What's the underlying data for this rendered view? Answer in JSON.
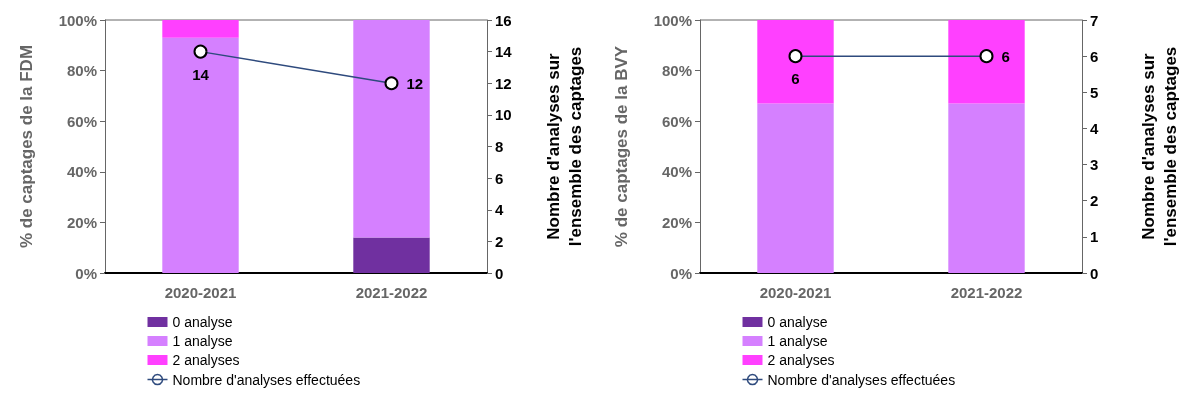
{
  "chart_data": [
    {
      "type": "bar",
      "stacked": true,
      "categories": [
        "2020-2021",
        "2021-2022"
      ],
      "ylabel": "% de captages de la FDM",
      "y2label": "Nombre d'analyses sur l'ensemble des captages",
      "ylim": [
        0,
        100
      ],
      "yticks": [
        {
          "value": 0,
          "label": "0%"
        },
        {
          "value": 20,
          "label": "20%"
        },
        {
          "value": 40,
          "label": "40%"
        },
        {
          "value": 60,
          "label": "60%"
        },
        {
          "value": 80,
          "label": "80%"
        },
        {
          "value": 100,
          "label": "100%"
        }
      ],
      "y2lim": [
        0,
        16
      ],
      "y2ticks": [
        0,
        2,
        4,
        6,
        8,
        10,
        12,
        14,
        16
      ],
      "grid": false,
      "legend": "bottom left",
      "series": [
        {
          "name": "0 analyse",
          "color": "#7030a0",
          "values": [
            0,
            14
          ]
        },
        {
          "name": "1 analyse",
          "color": "#d580ff",
          "values": [
            93,
            86
          ]
        },
        {
          "name": "2 analyses",
          "color": "#ff40ff",
          "values": [
            7,
            0
          ]
        },
        {
          "name": "Nombre d'analyses effectuées",
          "type": "line",
          "axis": "y2",
          "color": "#2e4a7d",
          "marker": "circle",
          "values": [
            14,
            12
          ],
          "value_labels": [
            "14",
            "12"
          ]
        }
      ]
    },
    {
      "type": "bar",
      "stacked": true,
      "categories": [
        "2020-2021",
        "2021-2022"
      ],
      "ylabel": "% de captages de la BVY",
      "y2label": "Nombre d'analyses sur l'ensemble des captages",
      "ylim": [
        0,
        100
      ],
      "yticks": [
        {
          "value": 0,
          "label": "0%"
        },
        {
          "value": 20,
          "label": "20%"
        },
        {
          "value": 40,
          "label": "40%"
        },
        {
          "value": 60,
          "label": "60%"
        },
        {
          "value": 80,
          "label": "80%"
        },
        {
          "value": 100,
          "label": "100%"
        }
      ],
      "y2lim": [
        0,
        7
      ],
      "y2ticks": [
        0,
        1,
        2,
        3,
        4,
        5,
        6,
        7
      ],
      "grid": false,
      "legend": "bottom left",
      "series": [
        {
          "name": "0 analyse",
          "color": "#7030a0",
          "values": [
            0,
            0
          ]
        },
        {
          "name": "1 analyse",
          "color": "#d580ff",
          "values": [
            67,
            67
          ]
        },
        {
          "name": "2 analyses",
          "color": "#ff40ff",
          "values": [
            33,
            33
          ]
        },
        {
          "name": "Nombre d'analyses effectuées",
          "type": "line",
          "axis": "y2",
          "color": "#2e4a7d",
          "marker": "circle",
          "values": [
            6,
            6
          ],
          "value_labels": [
            "6",
            "6"
          ]
        }
      ]
    }
  ]
}
